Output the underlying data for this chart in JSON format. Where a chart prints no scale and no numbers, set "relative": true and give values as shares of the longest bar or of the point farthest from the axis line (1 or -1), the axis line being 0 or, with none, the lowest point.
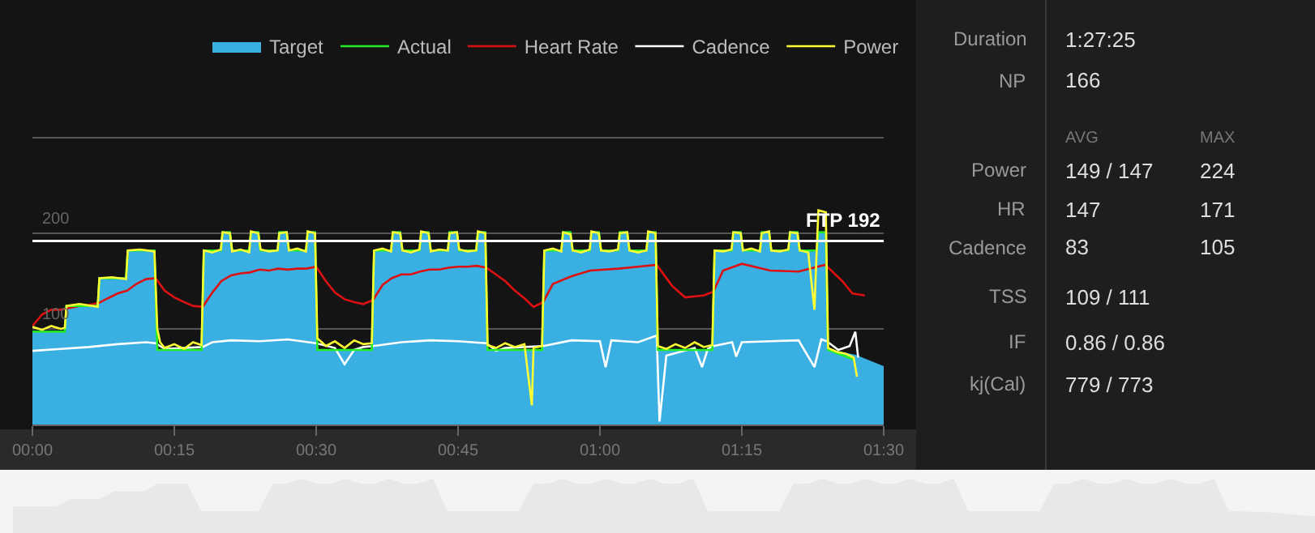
{
  "chart_data": [
    {
      "type": "line",
      "legend": "top right",
      "grid": "y",
      "xlim": [
        0,
        1.5
      ],
      "xticks": [
        {
          "value": 0,
          "label": "00:00"
        },
        {
          "value": 0.25,
          "label": "00:15"
        },
        {
          "value": 0.5,
          "label": "00:30"
        },
        {
          "value": 0.75,
          "label": "00:45"
        },
        {
          "value": 1,
          "label": "01:00"
        },
        {
          "value": 1.25,
          "label": "01:15"
        },
        {
          "value": 1.5,
          "label": "01:30"
        }
      ],
      "ylim": [
        0,
        444
      ],
      "yticks": [
        100,
        200,
        {
          "value": 300,
          "label": null
        }
      ],
      "ref_lines": [
        {
          "axis": "y",
          "value": 192,
          "label": "FTP 192",
          "color": "#ffffff"
        }
      ],
      "series": [
        {
          "name": "Target",
          "type": "area",
          "color": "#3ab0e2",
          "x": [
            0,
            0.057,
            0.06,
            0.115,
            0.118,
            0.165,
            0.168,
            0.215,
            0.22,
            0.298,
            0.302,
            0.332,
            0.335,
            0.348,
            0.352,
            0.382,
            0.385,
            0.398,
            0.402,
            0.432,
            0.435,
            0.448,
            0.452,
            0.482,
            0.485,
            0.498,
            0.502,
            0.598,
            0.602,
            0.632,
            0.635,
            0.648,
            0.652,
            0.682,
            0.685,
            0.698,
            0.702,
            0.732,
            0.735,
            0.748,
            0.752,
            0.782,
            0.785,
            0.798,
            0.802,
            0.898,
            0.902,
            0.932,
            0.935,
            0.948,
            0.952,
            0.982,
            0.985,
            0.998,
            1.002,
            1.032,
            1.035,
            1.048,
            1.052,
            1.082,
            1.085,
            1.098,
            1.102,
            1.198,
            1.202,
            1.232,
            1.235,
            1.248,
            1.252,
            1.282,
            1.285,
            1.298,
            1.302,
            1.332,
            1.335,
            1.348,
            1.352,
            1.382,
            1.385,
            1.398,
            1.402,
            1.45,
            1.5
          ],
          "values": [
            97,
            97,
            124,
            124,
            153,
            153,
            182,
            182,
            78,
            78,
            182,
            182,
            201,
            201,
            182,
            182,
            201,
            201,
            182,
            182,
            201,
            201,
            182,
            182,
            201,
            201,
            78,
            78,
            182,
            182,
            201,
            201,
            182,
            182,
            201,
            201,
            182,
            182,
            201,
            201,
            182,
            182,
            201,
            201,
            78,
            78,
            182,
            182,
            201,
            201,
            182,
            182,
            201,
            201,
            182,
            182,
            201,
            201,
            182,
            182,
            201,
            201,
            78,
            78,
            182,
            182,
            201,
            201,
            182,
            182,
            201,
            201,
            182,
            182,
            201,
            201,
            182,
            182,
            201,
            201,
            78,
            72,
            60
          ]
        },
        {
          "name": "Actual",
          "type": "line",
          "color": "#22ee22",
          "x": [
            0,
            0.057,
            0.06,
            0.115,
            0.118,
            0.165,
            0.168,
            0.215,
            0.22,
            0.298,
            0.302,
            0.332,
            0.335,
            0.348,
            0.352,
            0.382,
            0.385,
            0.398,
            0.402,
            0.432,
            0.435,
            0.448,
            0.452,
            0.482,
            0.485,
            0.498,
            0.502,
            0.598,
            0.602,
            0.632,
            0.635,
            0.648,
            0.652,
            0.682,
            0.685,
            0.698,
            0.702,
            0.732,
            0.735,
            0.748,
            0.752,
            0.782,
            0.785,
            0.798,
            0.802,
            0.898,
            0.902,
            0.932,
            0.935,
            0.948,
            0.952,
            0.982,
            0.985,
            0.998,
            1.002,
            1.032,
            1.035,
            1.048,
            1.052,
            1.082,
            1.085,
            1.098,
            1.102,
            1.198,
            1.202,
            1.232,
            1.235,
            1.248,
            1.252,
            1.282,
            1.285,
            1.298,
            1.302,
            1.332,
            1.335,
            1.348,
            1.352,
            1.382,
            1.385,
            1.398,
            1.402,
            1.447
          ],
          "values": [
            97,
            97,
            124,
            124,
            153,
            153,
            182,
            182,
            78,
            78,
            182,
            182,
            201,
            201,
            182,
            182,
            201,
            201,
            182,
            182,
            201,
            201,
            182,
            182,
            201,
            201,
            78,
            78,
            182,
            182,
            201,
            201,
            182,
            182,
            201,
            201,
            182,
            182,
            201,
            201,
            182,
            182,
            201,
            201,
            78,
            78,
            182,
            182,
            201,
            201,
            182,
            182,
            201,
            201,
            182,
            182,
            201,
            201,
            182,
            182,
            201,
            201,
            78,
            78,
            182,
            182,
            201,
            201,
            182,
            182,
            201,
            201,
            182,
            182,
            201,
            201,
            182,
            182,
            201,
            201,
            78,
            68
          ]
        },
        {
          "name": "Heart Rate",
          "type": "line",
          "color": "#dd1111",
          "x": [
            0,
            0.017,
            0.033,
            0.05,
            0.067,
            0.083,
            0.1,
            0.117,
            0.133,
            0.15,
            0.167,
            0.183,
            0.2,
            0.217,
            0.233,
            0.25,
            0.267,
            0.283,
            0.3,
            0.317,
            0.333,
            0.35,
            0.367,
            0.383,
            0.4,
            0.417,
            0.433,
            0.45,
            0.467,
            0.483,
            0.5,
            0.517,
            0.533,
            0.55,
            0.567,
            0.583,
            0.6,
            0.617,
            0.633,
            0.65,
            0.667,
            0.683,
            0.7,
            0.717,
            0.733,
            0.75,
            0.767,
            0.783,
            0.8,
            0.833,
            0.85,
            0.867,
            0.883,
            0.9,
            0.917,
            0.95,
            0.983,
            1.033,
            1.067,
            1.1,
            1.127,
            1.15,
            1.183,
            1.2,
            1.217,
            1.25,
            1.3,
            1.35,
            1.397,
            1.427,
            1.445,
            1.467
          ],
          "values": [
            103,
            115,
            120,
            120,
            122,
            124,
            125,
            127,
            132,
            137,
            140,
            147,
            152,
            153,
            140,
            133,
            128,
            124,
            123,
            138,
            150,
            156,
            158,
            159,
            162,
            161,
            163,
            162,
            163,
            163,
            165,
            150,
            138,
            131,
            128,
            126,
            130,
            146,
            153,
            157,
            157,
            160,
            162,
            162,
            164,
            165,
            165,
            166,
            164,
            150,
            140,
            132,
            123,
            128,
            147,
            155,
            161,
            163,
            165,
            167,
            145,
            133,
            135,
            139,
            161,
            168,
            161,
            160,
            167,
            150,
            137,
            135
          ]
        },
        {
          "name": "Cadence",
          "type": "line",
          "color": "#ffffff",
          "x": [
            0,
            0.05,
            0.1,
            0.15,
            0.2,
            0.217,
            0.233,
            0.267,
            0.3,
            0.317,
            0.35,
            0.4,
            0.45,
            0.5,
            0.533,
            0.55,
            0.567,
            0.583,
            0.6,
            0.65,
            0.7,
            0.75,
            0.8,
            0.817,
            0.833,
            0.867,
            0.9,
            0.95,
            1.0,
            1.01,
            1.02,
            1.067,
            1.1,
            1.105,
            1.117,
            1.167,
            1.18,
            1.19,
            1.2,
            1.233,
            1.24,
            1.25,
            1.3,
            1.35,
            1.378,
            1.39,
            1.4,
            1.42,
            1.44,
            1.45,
            1.455
          ],
          "values": [
            77,
            79,
            81,
            84,
            86,
            85,
            79,
            80,
            81,
            86,
            88,
            87,
            89,
            85,
            80,
            63,
            78,
            81,
            82,
            86,
            88,
            87,
            85,
            77,
            80,
            81,
            82,
            88,
            87,
            60,
            88,
            86,
            93,
            3,
            72,
            80,
            60,
            79,
            82,
            86,
            71,
            86,
            87,
            88,
            60,
            89,
            87,
            78,
            82,
            97,
            70
          ]
        },
        {
          "name": "Power",
          "type": "line",
          "color": "#ffff33",
          "x": [
            0,
            0.017,
            0.033,
            0.05,
            0.057,
            0.06,
            0.083,
            0.115,
            0.118,
            0.14,
            0.165,
            0.168,
            0.19,
            0.215,
            0.22,
            0.225,
            0.233,
            0.25,
            0.267,
            0.283,
            0.298,
            0.302,
            0.317,
            0.332,
            0.335,
            0.348,
            0.352,
            0.367,
            0.382,
            0.385,
            0.398,
            0.402,
            0.417,
            0.432,
            0.435,
            0.448,
            0.452,
            0.467,
            0.482,
            0.485,
            0.498,
            0.502,
            0.51,
            0.517,
            0.533,
            0.55,
            0.567,
            0.583,
            0.598,
            0.602,
            0.617,
            0.632,
            0.635,
            0.648,
            0.652,
            0.667,
            0.682,
            0.685,
            0.698,
            0.702,
            0.717,
            0.732,
            0.735,
            0.748,
            0.752,
            0.767,
            0.782,
            0.785,
            0.798,
            0.802,
            0.817,
            0.833,
            0.85,
            0.867,
            0.88,
            0.883,
            0.898,
            0.902,
            0.917,
            0.932,
            0.935,
            0.948,
            0.952,
            0.967,
            0.982,
            0.985,
            0.998,
            1.002,
            1.017,
            1.032,
            1.035,
            1.048,
            1.052,
            1.067,
            1.082,
            1.085,
            1.098,
            1.102,
            1.117,
            1.133,
            1.15,
            1.167,
            1.183,
            1.198,
            1.202,
            1.217,
            1.232,
            1.235,
            1.248,
            1.252,
            1.267,
            1.282,
            1.285,
            1.298,
            1.302,
            1.317,
            1.332,
            1.335,
            1.348,
            1.352,
            1.367,
            1.378,
            1.382,
            1.385,
            1.398,
            1.402,
            1.417,
            1.433,
            1.44,
            1.447,
            1.453
          ],
          "values": [
            102,
            99,
            103,
            100,
            101,
            124,
            126,
            123,
            153,
            154,
            152,
            182,
            183,
            181,
            100,
            86,
            80,
            84,
            79,
            86,
            83,
            182,
            180,
            183,
            201,
            200,
            181,
            183,
            180,
            202,
            200,
            183,
            181,
            182,
            200,
            201,
            182,
            184,
            181,
            202,
            200,
            90,
            86,
            82,
            87,
            80,
            88,
            84,
            85,
            182,
            184,
            181,
            201,
            200,
            182,
            180,
            183,
            202,
            200,
            181,
            183,
            182,
            200,
            201,
            183,
            181,
            182,
            202,
            200,
            83,
            80,
            85,
            81,
            84,
            20,
            80,
            82,
            182,
            184,
            181,
            201,
            199,
            182,
            180,
            183,
            202,
            200,
            182,
            181,
            183,
            200,
            201,
            182,
            180,
            182,
            202,
            200,
            82,
            79,
            84,
            80,
            86,
            81,
            83,
            182,
            181,
            183,
            201,
            200,
            182,
            184,
            181,
            200,
            202,
            182,
            181,
            183,
            201,
            200,
            182,
            180,
            120,
            183,
            224,
            222,
            80,
            76,
            74,
            72,
            70,
            50
          ]
        }
      ]
    },
    {
      "type": "area",
      "relative": true,
      "color": "#e8e8e8",
      "categories": [
        null,
        null,
        null,
        null,
        null,
        null,
        null,
        null,
        null,
        null,
        null,
        null,
        null,
        null,
        null,
        null,
        null,
        null,
        null,
        null,
        null,
        null,
        null,
        null,
        null,
        null,
        null,
        null,
        null,
        null,
        null,
        null,
        null,
        null,
        null,
        null,
        null,
        null,
        null,
        null,
        null,
        null,
        null,
        null,
        null,
        null,
        null,
        null,
        null,
        null,
        null,
        null,
        null,
        null,
        null,
        null,
        null,
        null,
        null,
        null,
        null,
        null,
        null,
        null,
        null,
        null,
        null,
        null,
        null,
        null,
        null,
        null,
        null,
        null,
        null,
        null,
        null,
        null,
        null,
        null,
        null,
        null,
        null,
        null,
        null,
        null,
        null,
        null,
        null,
        null,
        null
      ],
      "values": [
        0.48,
        0.48,
        0.48,
        0.48,
        0.62,
        0.62,
        0.62,
        0.76,
        0.76,
        0.76,
        0.91,
        0.91,
        0.91,
        0.39,
        0.39,
        0.39,
        0.39,
        0.39,
        0.91,
        0.91,
        1,
        0.91,
        0.91,
        1,
        0.91,
        0.91,
        1,
        0.91,
        0.91,
        1,
        0.39,
        0.39,
        0.39,
        0.39,
        0.39,
        0.39,
        0.91,
        0.91,
        1,
        0.91,
        0.91,
        1,
        0.91,
        0.91,
        1,
        0.91,
        0.91,
        1,
        0.39,
        0.39,
        0.39,
        0.39,
        0.39,
        0.39,
        0.91,
        0.91,
        1,
        0.91,
        0.91,
        1,
        0.91,
        0.91,
        1,
        0.91,
        0.91,
        1,
        0.39,
        0.39,
        0.39,
        0.39,
        0.39,
        0.39,
        0.91,
        0.91,
        1,
        0.91,
        0.91,
        1,
        0.91,
        0.91,
        1,
        0.91,
        0.91,
        1,
        0.39,
        0.39,
        0.38,
        0.37,
        0.34,
        0.32,
        0.3
      ]
    },
    {
      "type": "other",
      "annotations": [
        "Duration",
        "1:27:25",
        "NP",
        "166",
        "AVG",
        "MAX",
        "Power",
        "149 / 147",
        "224",
        "HR",
        "147",
        "171",
        "Cadence",
        "83",
        "105",
        "TSS",
        "109 / 111",
        "IF",
        "0.86 / 0.86",
        "kj(Cal)",
        "779 / 773"
      ]
    }
  ]
}
